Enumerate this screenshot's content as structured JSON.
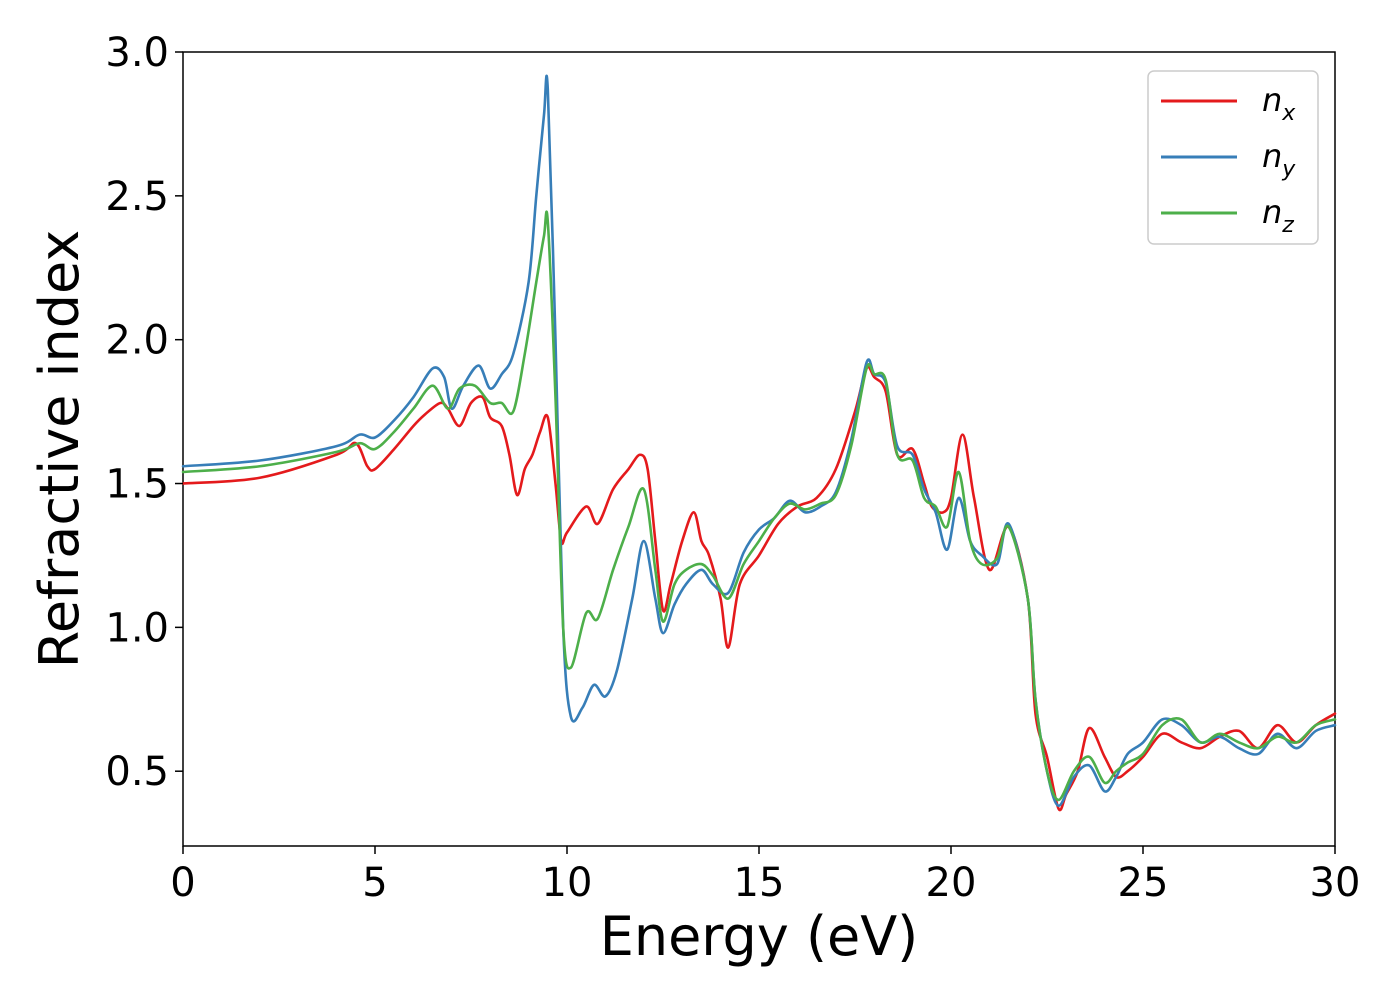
{
  "chart_data": {
    "type": "line",
    "title": "",
    "xlabel": "Energy (eV)",
    "ylabel": "Refractive index",
    "xlim": [
      0,
      30
    ],
    "ylim": [
      0.24,
      3.0
    ],
    "xticks": [
      0,
      5,
      10,
      15,
      20,
      25,
      30
    ],
    "xtick_labels": [
      "0",
      "5",
      "10",
      "15",
      "20",
      "25",
      "30"
    ],
    "yticks": [
      0.5,
      1.0,
      1.5,
      2.0,
      2.5,
      3.0
    ],
    "ytick_labels": [
      "0.5",
      "1.0",
      "1.5",
      "2.0",
      "2.5",
      "3.0"
    ],
    "grid": false,
    "legend_position": "top-right",
    "series": [
      {
        "name": "n_x",
        "label_main": "n",
        "label_sub": "x",
        "color": "#e41a1c",
        "x": [
          0,
          2,
          4,
          4.5,
          4.8,
          5.0,
          5.5,
          6.0,
          6.3,
          6.7,
          6.9,
          7.2,
          7.5,
          7.8,
          8.0,
          8.3,
          8.5,
          8.7,
          8.9,
          9.1,
          9.3,
          9.5,
          9.7,
          9.85,
          10.0,
          10.5,
          10.8,
          11.2,
          11.6,
          11.9,
          12.1,
          12.3,
          12.5,
          12.7,
          13.0,
          13.3,
          13.5,
          13.7,
          14.0,
          14.2,
          14.5,
          15.0,
          15.5,
          16.0,
          16.5,
          17.0,
          17.5,
          17.8,
          18.0,
          18.3,
          18.6,
          19.0,
          19.3,
          19.5,
          19.8,
          20.0,
          20.3,
          20.6,
          21.0,
          21.5,
          22.0,
          22.2,
          22.5,
          22.8,
          23.0,
          23.3,
          23.6,
          24.0,
          24.3,
          24.6,
          25.0,
          25.5,
          26.0,
          26.5,
          27.0,
          27.5,
          28.0,
          28.5,
          29.0,
          29.5,
          30.0
        ],
        "y": [
          1.5,
          1.52,
          1.6,
          1.64,
          1.56,
          1.55,
          1.62,
          1.7,
          1.74,
          1.78,
          1.76,
          1.7,
          1.78,
          1.8,
          1.73,
          1.7,
          1.6,
          1.46,
          1.55,
          1.6,
          1.68,
          1.73,
          1.5,
          1.3,
          1.33,
          1.42,
          1.36,
          1.48,
          1.55,
          1.6,
          1.55,
          1.3,
          1.06,
          1.15,
          1.3,
          1.4,
          1.3,
          1.25,
          1.1,
          0.93,
          1.15,
          1.25,
          1.36,
          1.42,
          1.45,
          1.55,
          1.75,
          1.9,
          1.87,
          1.82,
          1.6,
          1.62,
          1.5,
          1.42,
          1.4,
          1.45,
          1.67,
          1.45,
          1.2,
          1.35,
          1.1,
          0.7,
          0.55,
          0.37,
          0.42,
          0.5,
          0.65,
          0.55,
          0.48,
          0.5,
          0.55,
          0.63,
          0.6,
          0.58,
          0.62,
          0.64,
          0.58,
          0.66,
          0.6,
          0.66,
          0.7
        ]
      },
      {
        "name": "n_y",
        "label_main": "n",
        "label_sub": "y",
        "color": "#377eb8",
        "x": [
          0,
          2,
          4,
          4.6,
          5.0,
          5.5,
          6.0,
          6.5,
          6.8,
          7.0,
          7.3,
          7.7,
          8.0,
          8.3,
          8.6,
          9.0,
          9.2,
          9.4,
          9.5,
          9.7,
          9.9,
          10.1,
          10.4,
          10.7,
          11.0,
          11.3,
          11.7,
          12.0,
          12.3,
          12.5,
          12.8,
          13.1,
          13.5,
          13.8,
          14.2,
          14.6,
          15.0,
          15.4,
          15.8,
          16.2,
          16.6,
          17.0,
          17.4,
          17.8,
          18.0,
          18.3,
          18.6,
          19.0,
          19.3,
          19.6,
          19.9,
          20.2,
          20.5,
          20.8,
          21.2,
          21.5,
          22.0,
          22.2,
          22.5,
          22.8,
          23.2,
          23.6,
          24.0,
          24.3,
          24.6,
          25.0,
          25.5,
          26.0,
          26.5,
          27.0,
          27.5,
          28.0,
          28.5,
          29.0,
          29.5,
          30.0
        ],
        "y": [
          1.56,
          1.58,
          1.63,
          1.67,
          1.66,
          1.72,
          1.8,
          1.9,
          1.87,
          1.76,
          1.84,
          1.91,
          1.83,
          1.88,
          1.95,
          2.2,
          2.5,
          2.78,
          2.87,
          2.0,
          1.0,
          0.69,
          0.72,
          0.8,
          0.76,
          0.85,
          1.1,
          1.3,
          1.1,
          0.98,
          1.08,
          1.15,
          1.2,
          1.15,
          1.12,
          1.26,
          1.34,
          1.38,
          1.44,
          1.4,
          1.42,
          1.47,
          1.65,
          1.92,
          1.88,
          1.85,
          1.63,
          1.6,
          1.48,
          1.4,
          1.27,
          1.45,
          1.3,
          1.25,
          1.22,
          1.36,
          1.1,
          0.75,
          0.5,
          0.38,
          0.48,
          0.52,
          0.43,
          0.48,
          0.56,
          0.6,
          0.68,
          0.66,
          0.6,
          0.62,
          0.58,
          0.56,
          0.63,
          0.58,
          0.64,
          0.66
        ]
      },
      {
        "name": "n_z",
        "label_main": "n",
        "label_sub": "z",
        "color": "#4daf4a",
        "x": [
          0,
          2,
          4,
          4.6,
          5.0,
          5.5,
          6.0,
          6.5,
          6.9,
          7.2,
          7.6,
          8.0,
          8.3,
          8.6,
          8.9,
          9.2,
          9.4,
          9.5,
          9.7,
          9.9,
          10.1,
          10.5,
          10.8,
          11.2,
          11.6,
          12.0,
          12.3,
          12.5,
          12.8,
          13.1,
          13.5,
          13.8,
          14.2,
          14.6,
          15.0,
          15.4,
          15.8,
          16.2,
          16.6,
          17.0,
          17.4,
          17.8,
          18.0,
          18.3,
          18.6,
          19.0,
          19.3,
          19.6,
          19.9,
          20.2,
          20.5,
          20.8,
          21.2,
          21.5,
          22.0,
          22.2,
          22.5,
          22.8,
          23.2,
          23.6,
          24.0,
          24.3,
          24.6,
          25.0,
          25.5,
          26.0,
          26.5,
          27.0,
          27.5,
          28.0,
          28.5,
          29.0,
          29.5,
          30.0
        ],
        "y": [
          1.54,
          1.56,
          1.61,
          1.64,
          1.62,
          1.68,
          1.76,
          1.84,
          1.76,
          1.83,
          1.84,
          1.78,
          1.78,
          1.75,
          1.95,
          2.2,
          2.36,
          2.41,
          1.8,
          1.0,
          0.86,
          1.05,
          1.03,
          1.2,
          1.35,
          1.48,
          1.2,
          1.02,
          1.15,
          1.2,
          1.22,
          1.18,
          1.1,
          1.22,
          1.3,
          1.38,
          1.43,
          1.41,
          1.43,
          1.46,
          1.63,
          1.9,
          1.88,
          1.86,
          1.6,
          1.58,
          1.45,
          1.42,
          1.35,
          1.54,
          1.3,
          1.22,
          1.24,
          1.35,
          1.1,
          0.75,
          0.5,
          0.4,
          0.5,
          0.55,
          0.46,
          0.5,
          0.53,
          0.56,
          0.66,
          0.68,
          0.6,
          0.63,
          0.6,
          0.58,
          0.62,
          0.6,
          0.66,
          0.68
        ]
      }
    ]
  }
}
